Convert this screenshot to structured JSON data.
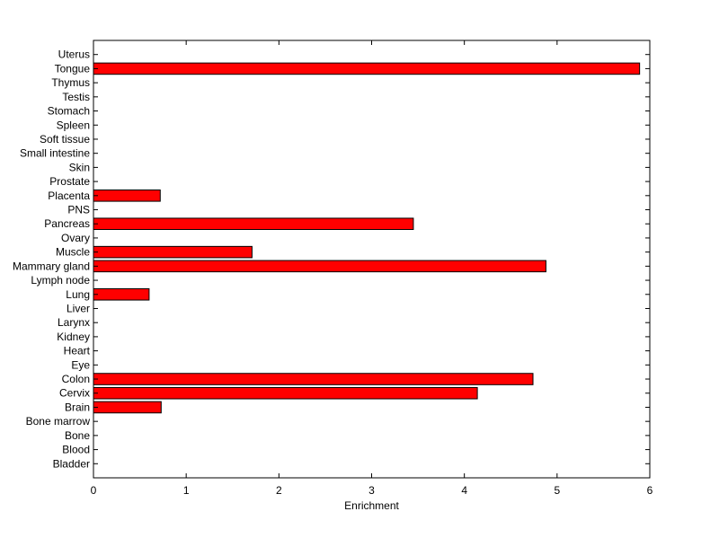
{
  "chart_data": {
    "type": "bar",
    "orientation": "horizontal",
    "categories": [
      "Bladder",
      "Blood",
      "Bone",
      "Bone marrow",
      "Brain",
      "Cervix",
      "Colon",
      "Eye",
      "Heart",
      "Kidney",
      "Larynx",
      "Liver",
      "Lung",
      "Lymph node",
      "Mammary gland",
      "Muscle",
      "Ovary",
      "Pancreas",
      "PNS",
      "Placenta",
      "Prostate",
      "Skin",
      "Small intestine",
      "Soft tissue",
      "Spleen",
      "Stomach",
      "Testis",
      "Thymus",
      "Tongue",
      "Uterus"
    ],
    "values": [
      0,
      0,
      0,
      0,
      0.73,
      4.14,
      4.74,
      0,
      0,
      0,
      0,
      0,
      0.6,
      0,
      4.88,
      1.71,
      0,
      3.45,
      0,
      0.72,
      0,
      0,
      0,
      0,
      0,
      0,
      0,
      0,
      5.89,
      0
    ],
    "xlabel": "Enrichment",
    "ylabel": "",
    "title": "",
    "xlim": [
      0,
      6
    ],
    "xticks": [
      0,
      1,
      2,
      3,
      4,
      5,
      6
    ],
    "grid": false,
    "bar_color": "#ff0000",
    "edge_color": "#000000"
  }
}
